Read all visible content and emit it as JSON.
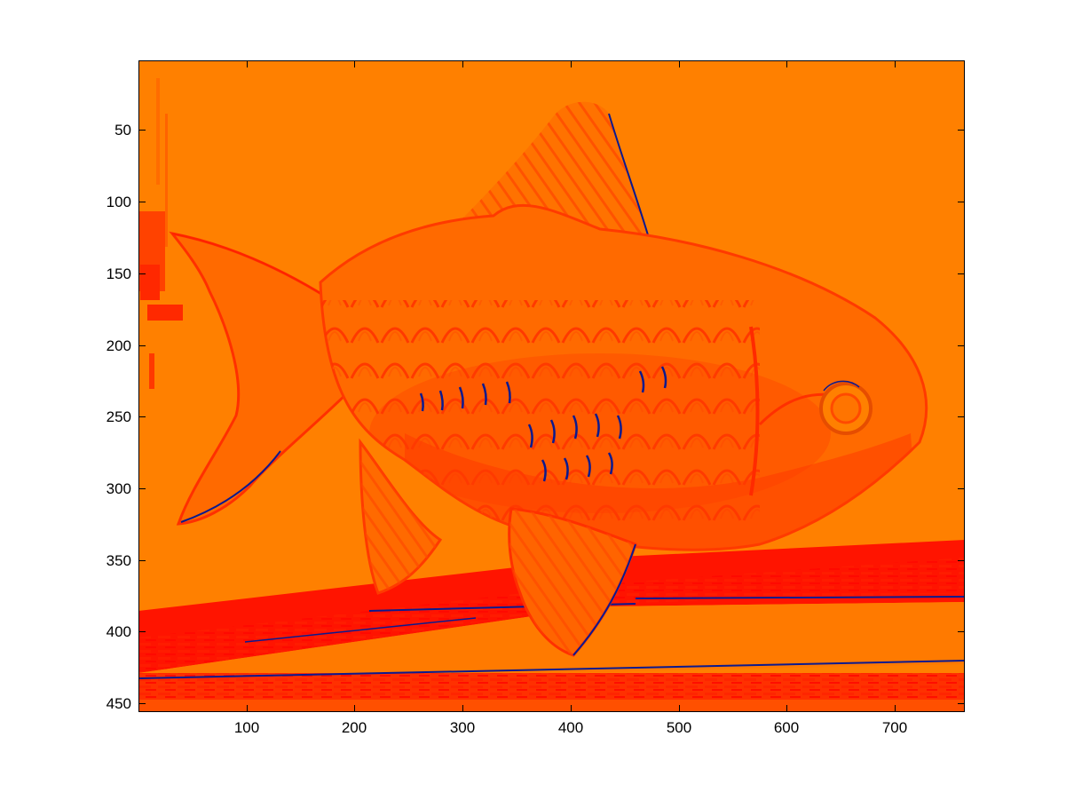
{
  "figure": {
    "image": "false-color-goldfish",
    "colormap": "jet",
    "colors": {
      "background_orange": "#ff8000",
      "body_orange": "#ff6a00",
      "shadow_red": "#ff1a00",
      "deep_red": "#ff0000",
      "scale_blue": "#0b1a8f",
      "eye_ring": "#e64d00"
    }
  },
  "axes": {
    "xlim": [
      1,
      765
    ],
    "ylim": [
      1,
      455
    ],
    "y_direction": "reverse",
    "x_ticks": [
      100,
      200,
      300,
      400,
      500,
      600,
      700
    ],
    "y_ticks": [
      50,
      100,
      150,
      200,
      250,
      300,
      350,
      400,
      450
    ],
    "x_tick_labels": [
      "100",
      "200",
      "300",
      "400",
      "500",
      "600",
      "700"
    ],
    "y_tick_labels": [
      "50",
      "100",
      "150",
      "200",
      "250",
      "300",
      "350",
      "400",
      "450"
    ]
  }
}
